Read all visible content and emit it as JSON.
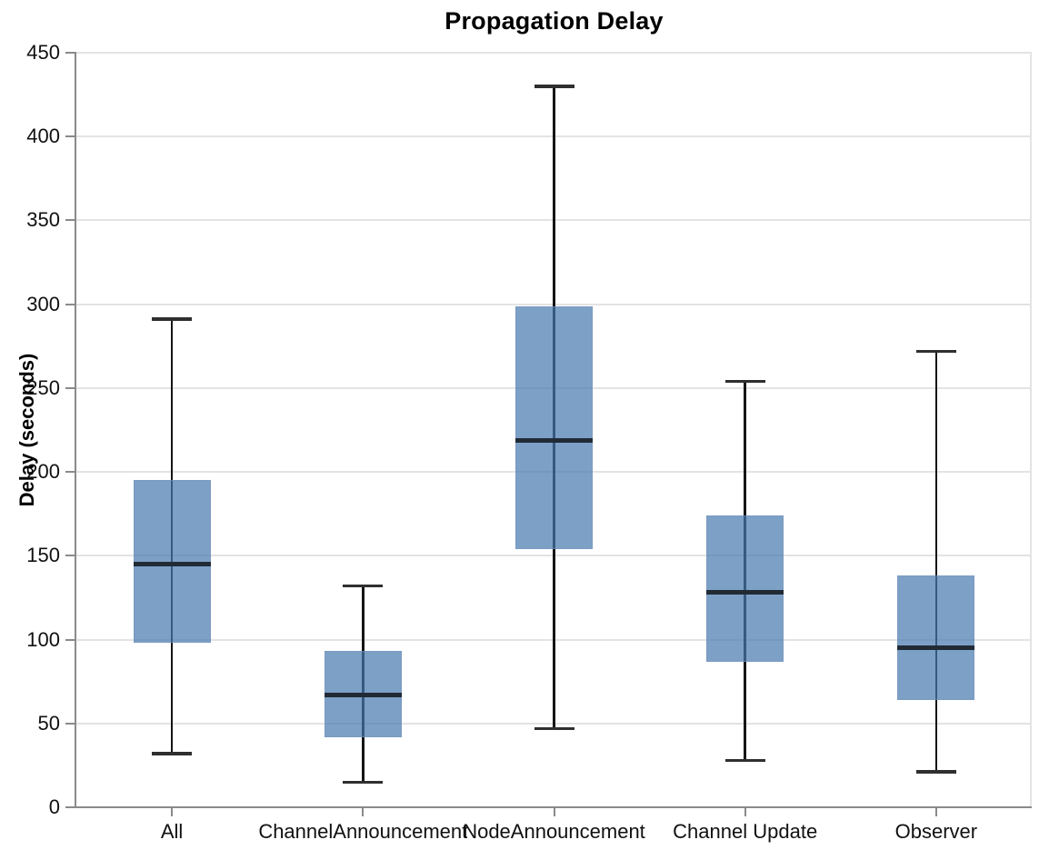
{
  "chart_data": {
    "type": "boxplot",
    "title": "Propagation Delay",
    "xlabel": "",
    "ylabel": "Delay (seconds)",
    "categories": [
      "All",
      "ChannelAnnouncement",
      "NodeAnnouncement",
      "Channel Update",
      "Observer"
    ],
    "boxes": [
      {
        "category": "All",
        "whisker_low": 32,
        "q1": 98,
        "median": 145,
        "q3": 195,
        "whisker_high": 291
      },
      {
        "category": "ChannelAnnouncement",
        "whisker_low": 15,
        "q1": 42,
        "median": 67,
        "q3": 93,
        "whisker_high": 132
      },
      {
        "category": "NodeAnnouncement",
        "whisker_low": 47,
        "q1": 154,
        "median": 219,
        "q3": 299,
        "whisker_high": 430
      },
      {
        "category": "Channel Update",
        "whisker_low": 28,
        "q1": 87,
        "median": 128,
        "q3": 174,
        "whisker_high": 254
      },
      {
        "category": "Observer",
        "whisker_low": 21,
        "q1": 64,
        "median": 95,
        "q3": 138,
        "whisker_high": 272
      }
    ],
    "ylim": [
      0,
      450
    ],
    "yticks": [
      0,
      50,
      100,
      150,
      200,
      250,
      300,
      350,
      400,
      450
    ],
    "grid": "horizontal",
    "legend": "none",
    "style": {
      "box_fill": "rgba(70,120,175,0.70)",
      "box_border": "rgba(120,150,185,0.55)",
      "median_color": "#212b36",
      "whisker_color": "#151515",
      "cap_color": "#2f2f2f",
      "grid_color": "#e3e3e3",
      "axis_color": "#8a8a8a",
      "tick_color": "#8a8a8a",
      "label_color": "#111111",
      "background": "#ffffff"
    }
  }
}
